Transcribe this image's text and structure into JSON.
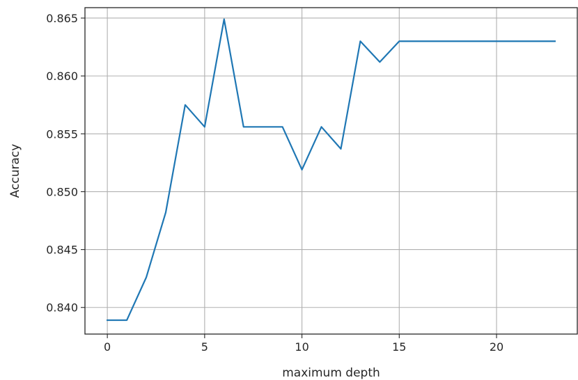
{
  "chart_data": {
    "type": "line",
    "title": "",
    "xlabel": "maximum depth",
    "ylabel": "Accuracy",
    "xlim": [
      -1.15,
      24.15
    ],
    "ylim": [
      0.8377,
      0.8659
    ],
    "xticks": [
      0,
      5,
      10,
      15,
      20
    ],
    "xtick_labels": [
      "0",
      "5",
      "10",
      "15",
      "20"
    ],
    "yticks": [
      0.84,
      0.845,
      0.85,
      0.855,
      0.86,
      0.865
    ],
    "ytick_labels": [
      "0.840",
      "0.845",
      "0.850",
      "0.855",
      "0.860",
      "0.865"
    ],
    "grid": true,
    "series": [
      {
        "color": "#1f77b4",
        "x": [
          0,
          1,
          2,
          3,
          4,
          5,
          6,
          7,
          8,
          9,
          10,
          11,
          12,
          13,
          14,
          15,
          16,
          17,
          18,
          19,
          20,
          21,
          22,
          23
        ],
        "y": [
          0.8389,
          0.8389,
          0.8426,
          0.8482,
          0.8575,
          0.8556,
          0.8649,
          0.8556,
          0.8556,
          0.8556,
          0.8519,
          0.8556,
          0.8537,
          0.863,
          0.8612,
          0.863,
          0.863,
          0.863,
          0.863,
          0.863,
          0.863,
          0.863,
          0.863,
          0.863
        ]
      }
    ]
  }
}
